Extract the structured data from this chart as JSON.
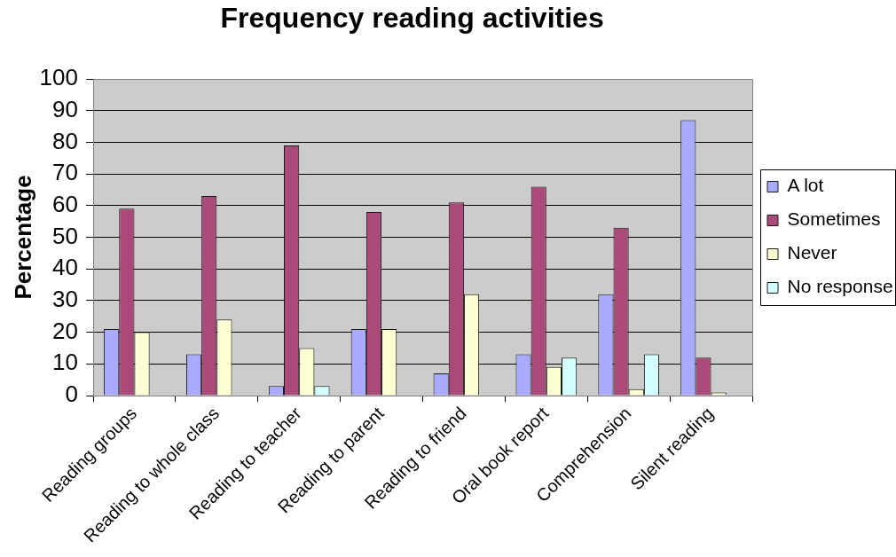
{
  "chart_data": {
    "type": "bar",
    "title": "Frequency reading activities",
    "ylabel": "Percentage",
    "categories": [
      "Reading groups",
      "Reading to whole class",
      "Reading to teacher",
      "Reading to parent",
      "Reading to friend",
      "Oral book report",
      "Comprehension",
      "Silent reading"
    ],
    "series": [
      {
        "name": "A lot",
        "color": "#aaaaff",
        "values": [
          21,
          13,
          3,
          21,
          7,
          13,
          32,
          87
        ]
      },
      {
        "name": "Sometimes",
        "color": "#aa4a78",
        "values": [
          59,
          63,
          79,
          58,
          61,
          66,
          53,
          12
        ]
      },
      {
        "name": "Never",
        "color": "#ffffd4",
        "values": [
          20,
          24,
          15,
          21,
          32,
          9,
          2,
          1
        ]
      },
      {
        "name": "No response",
        "color": "#d4ffff",
        "values": [
          null,
          null,
          3,
          null,
          null,
          12,
          13,
          null
        ]
      }
    ],
    "ylim": [
      0,
      100
    ],
    "yticks": [
      0,
      10,
      20,
      30,
      40,
      50,
      60,
      70,
      80,
      90,
      100
    ],
    "grid": "y",
    "legend": "right"
  }
}
